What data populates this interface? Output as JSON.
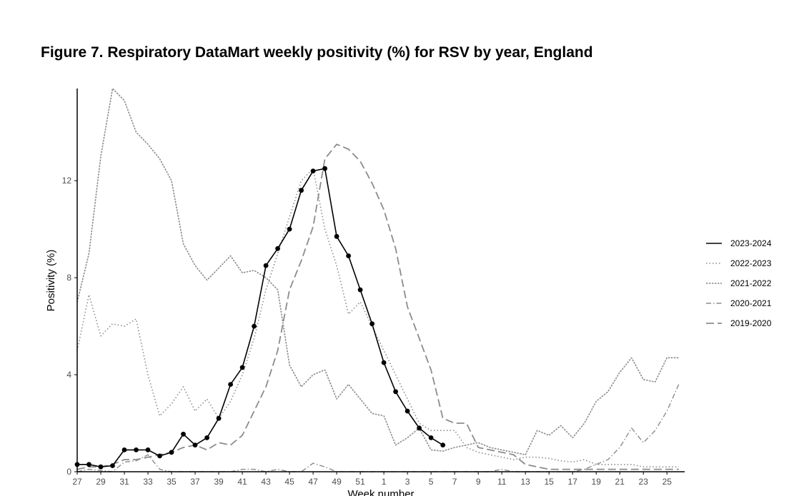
{
  "figure_title": "Figure 7. Respiratory DataMart weekly positivity (%) for RSV by year, England",
  "colors": {
    "line_current": "#000000",
    "line_past": "#8c8c8c",
    "axis": "#000000",
    "tick_text": "#4d4d4d"
  },
  "chart_data": {
    "type": "line",
    "title": "Figure 7. Respiratory DataMart weekly positivity (%) for RSV by year, England",
    "xlabel": "Week number",
    "ylabel": "Positivity (%)",
    "x_tick_labels": [
      "27",
      "29",
      "31",
      "33",
      "35",
      "37",
      "39",
      "41",
      "43",
      "45",
      "47",
      "49",
      "51",
      "1",
      "3",
      "5",
      "7",
      "9",
      "11",
      "13",
      "15",
      "17",
      "19",
      "21",
      "23",
      "25"
    ],
    "y_ticks": [
      0,
      4,
      8,
      12
    ],
    "ylim": [
      0,
      15.8
    ],
    "x_index_range": [
      0,
      51.5
    ],
    "legend_position": "right",
    "series": [
      {
        "name": "2023-2024",
        "style": "solid-markers",
        "values": [
          0.3,
          0.3,
          0.2,
          0.25,
          0.9,
          0.9,
          0.9,
          0.65,
          0.8,
          1.55,
          1.1,
          1.4,
          2.2,
          3.6,
          4.3,
          6.0,
          8.5,
          9.2,
          10.0,
          11.6,
          12.4,
          12.5,
          9.7,
          8.9,
          7.5,
          6.1,
          4.5,
          3.3,
          2.5,
          1.8,
          1.4,
          1.1
        ]
      },
      {
        "name": "2022-2023",
        "style": "dotted",
        "values": [
          5.0,
          7.3,
          5.6,
          6.1,
          6.0,
          6.3,
          4.0,
          2.3,
          2.8,
          3.5,
          2.5,
          3.0,
          2.2,
          2.9,
          4.0,
          5.5,
          7.5,
          9.0,
          10.5,
          12.0,
          12.5,
          10.0,
          8.5,
          6.5,
          7.0,
          6.0,
          5.0,
          4.0,
          3.0,
          2.0,
          1.7,
          1.7,
          1.7,
          1.0,
          0.8,
          0.7,
          0.6,
          0.5,
          0.6,
          0.6,
          0.55,
          0.45,
          0.4,
          0.5,
          0.3,
          0.3,
          0.3,
          0.3,
          0.2,
          0.2,
          0.2,
          0.2
        ]
      },
      {
        "name": "2021-2022",
        "style": "short-dash",
        "values": [
          7.0,
          9.0,
          13.0,
          15.8,
          15.3,
          14.0,
          13.5,
          12.9,
          12.0,
          9.4,
          8.5,
          7.9,
          8.4,
          8.9,
          8.2,
          8.3,
          8.0,
          7.5,
          4.4,
          3.5,
          4.0,
          4.2,
          3.0,
          3.6,
          3.0,
          2.4,
          2.3,
          1.1,
          1.4,
          1.8,
          0.9,
          0.85,
          1.0,
          1.1,
          1.2,
          1.0,
          0.9,
          0.8,
          0.7,
          1.7,
          1.5,
          1.9,
          1.4,
          2.0,
          2.9,
          3.3,
          4.1,
          4.7,
          3.8,
          3.7,
          4.7,
          4.7
        ]
      },
      {
        "name": "2020-2021",
        "style": "dash-dot",
        "values": [
          0.0,
          0.1,
          0.05,
          0.0,
          0.4,
          0.45,
          0.7,
          0.1,
          0.0,
          0.0,
          0.0,
          0.0,
          0.0,
          0.0,
          0.1,
          0.1,
          0.0,
          0.1,
          0.0,
          0.0,
          0.35,
          0.2,
          0.0,
          0.0,
          0.0,
          0.0,
          0.0,
          0.0,
          0.0,
          0.0,
          0.0,
          0.0,
          0.0,
          0.0,
          0.0,
          0.0,
          0.1,
          0.0,
          0.0,
          0.0,
          0.0,
          0.0,
          0.0,
          0.1,
          0.3,
          0.5,
          1.0,
          1.8,
          1.2,
          1.7,
          2.5,
          3.6
        ]
      },
      {
        "name": "2019-2020",
        "style": "long-dash",
        "values": [
          0.1,
          0.2,
          0.2,
          0.3,
          0.5,
          0.5,
          0.6,
          0.7,
          0.8,
          1.0,
          1.1,
          0.9,
          1.2,
          1.1,
          1.5,
          2.5,
          3.5,
          5.0,
          7.5,
          8.7,
          10.1,
          12.9,
          13.5,
          13.3,
          12.8,
          11.9,
          10.8,
          9.2,
          6.8,
          5.5,
          4.2,
          2.2,
          2.0,
          2.0,
          1.0,
          0.9,
          0.8,
          0.7,
          0.3,
          0.2,
          0.1,
          0.1,
          0.1,
          0.1,
          0.1,
          0.1,
          0.1,
          0.1,
          0.1,
          0.1,
          0.1,
          0.1
        ]
      }
    ]
  }
}
